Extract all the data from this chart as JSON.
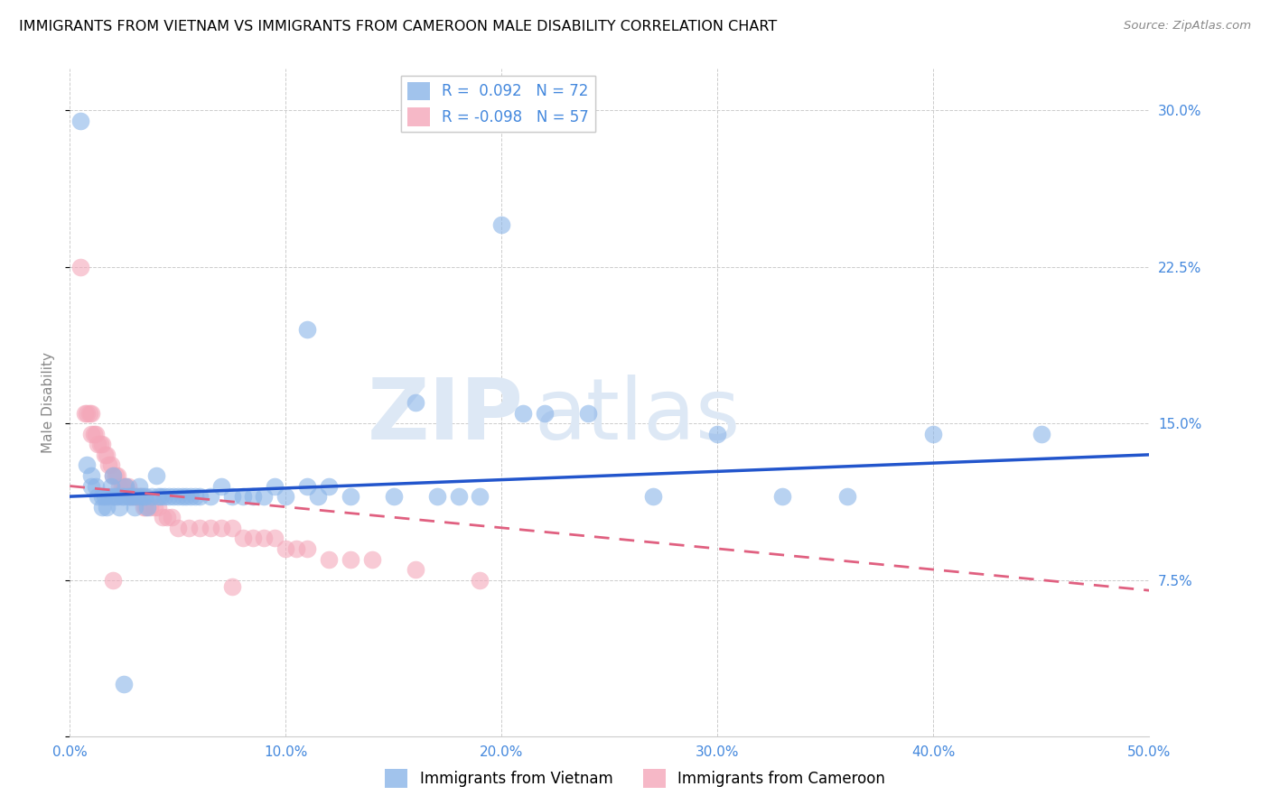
{
  "title": "IMMIGRANTS FROM VIETNAM VS IMMIGRANTS FROM CAMEROON MALE DISABILITY CORRELATION CHART",
  "source": "Source: ZipAtlas.com",
  "ylabel": "Male Disability",
  "xlim": [
    0.0,
    0.5
  ],
  "ylim": [
    0.0,
    0.32
  ],
  "xticks": [
    0.0,
    0.1,
    0.2,
    0.3,
    0.4,
    0.5
  ],
  "yticks": [
    0.0,
    0.075,
    0.15,
    0.225,
    0.3
  ],
  "xticklabels": [
    "0.0%",
    "10.0%",
    "20.0%",
    "30.0%",
    "40.0%",
    "50.0%"
  ],
  "yticklabels": [
    "",
    "7.5%",
    "15.0%",
    "22.5%",
    "30.0%"
  ],
  "vietnam_color": "#8ab4e8",
  "cameroon_color": "#f4a7b9",
  "vietnam_R": 0.092,
  "vietnam_N": 72,
  "cameroon_R": -0.098,
  "cameroon_N": 57,
  "vietnam_line_color": "#2255cc",
  "cameroon_line_color": "#e06080",
  "watermark_zip": "ZIP",
  "watermark_atlas": "atlas",
  "legend_label_vietnam": "Immigrants from Vietnam",
  "legend_label_cameroon": "Immigrants from Cameroon",
  "vietnam_x": [
    0.005,
    0.008,
    0.01,
    0.01,
    0.012,
    0.013,
    0.015,
    0.015,
    0.016,
    0.017,
    0.018,
    0.019,
    0.02,
    0.02,
    0.021,
    0.022,
    0.023,
    0.024,
    0.025,
    0.026,
    0.027,
    0.028,
    0.029,
    0.03,
    0.031,
    0.032,
    0.033,
    0.034,
    0.035,
    0.036,
    0.038,
    0.04,
    0.041,
    0.042,
    0.044,
    0.046,
    0.048,
    0.05,
    0.052,
    0.054,
    0.056,
    0.058,
    0.06,
    0.065,
    0.07,
    0.075,
    0.08,
    0.085,
    0.09,
    0.095,
    0.1,
    0.11,
    0.115,
    0.12,
    0.13,
    0.15,
    0.17,
    0.19,
    0.21,
    0.24,
    0.27,
    0.3,
    0.33,
    0.36,
    0.4,
    0.45,
    0.11,
    0.2,
    0.22,
    0.025,
    0.16,
    0.18
  ],
  "vietnam_y": [
    0.295,
    0.13,
    0.125,
    0.12,
    0.12,
    0.115,
    0.115,
    0.11,
    0.115,
    0.11,
    0.115,
    0.12,
    0.125,
    0.115,
    0.115,
    0.115,
    0.11,
    0.115,
    0.115,
    0.12,
    0.115,
    0.115,
    0.115,
    0.11,
    0.115,
    0.12,
    0.115,
    0.115,
    0.115,
    0.11,
    0.115,
    0.125,
    0.115,
    0.115,
    0.115,
    0.115,
    0.115,
    0.115,
    0.115,
    0.115,
    0.115,
    0.115,
    0.115,
    0.115,
    0.12,
    0.115,
    0.115,
    0.115,
    0.115,
    0.12,
    0.115,
    0.12,
    0.115,
    0.12,
    0.115,
    0.115,
    0.115,
    0.115,
    0.155,
    0.155,
    0.115,
    0.145,
    0.115,
    0.115,
    0.145,
    0.145,
    0.195,
    0.245,
    0.155,
    0.025,
    0.16,
    0.115
  ],
  "cameroon_x": [
    0.005,
    0.007,
    0.008,
    0.009,
    0.01,
    0.01,
    0.011,
    0.012,
    0.013,
    0.014,
    0.015,
    0.016,
    0.017,
    0.018,
    0.019,
    0.02,
    0.021,
    0.022,
    0.023,
    0.024,
    0.025,
    0.026,
    0.027,
    0.028,
    0.029,
    0.03,
    0.031,
    0.032,
    0.033,
    0.034,
    0.035,
    0.037,
    0.039,
    0.041,
    0.043,
    0.045,
    0.047,
    0.05,
    0.055,
    0.06,
    0.065,
    0.07,
    0.075,
    0.08,
    0.085,
    0.09,
    0.095,
    0.1,
    0.105,
    0.11,
    0.12,
    0.13,
    0.14,
    0.16,
    0.19,
    0.02,
    0.075
  ],
  "cameroon_y": [
    0.225,
    0.155,
    0.155,
    0.155,
    0.155,
    0.145,
    0.145,
    0.145,
    0.14,
    0.14,
    0.14,
    0.135,
    0.135,
    0.13,
    0.13,
    0.125,
    0.125,
    0.125,
    0.12,
    0.12,
    0.12,
    0.12,
    0.12,
    0.115,
    0.115,
    0.115,
    0.115,
    0.115,
    0.115,
    0.11,
    0.11,
    0.11,
    0.11,
    0.11,
    0.105,
    0.105,
    0.105,
    0.1,
    0.1,
    0.1,
    0.1,
    0.1,
    0.1,
    0.095,
    0.095,
    0.095,
    0.095,
    0.09,
    0.09,
    0.09,
    0.085,
    0.085,
    0.085,
    0.08,
    0.075,
    0.075,
    0.072
  ]
}
